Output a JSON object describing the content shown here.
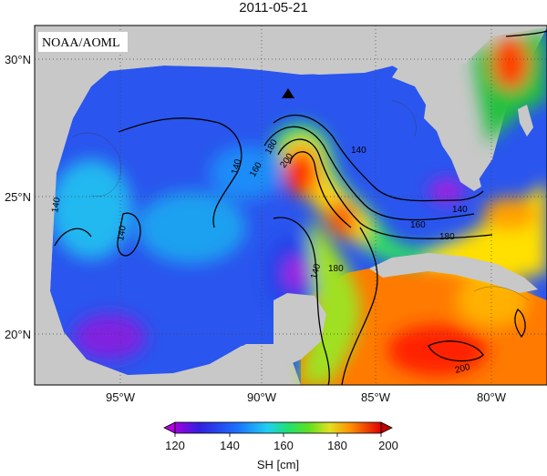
{
  "title": "2011-05-21",
  "credit": "NOAA/AOML",
  "map": {
    "lat_labels": [
      "30°N",
      "25°N",
      "20°N"
    ],
    "lon_labels": [
      "95°W",
      "90°W",
      "85°W",
      "80°W"
    ],
    "contour_labels": [
      "140",
      "140",
      "140",
      "140",
      "180",
      "160",
      "200",
      "140",
      "160",
      "180",
      "140",
      "180",
      "200"
    ],
    "marker": "triangle-marker",
    "land_color": "#c8c8c8"
  },
  "colorbar": {
    "label": "SH [cm]",
    "ticks": [
      "120",
      "140",
      "160",
      "180",
      "200"
    ],
    "colors": [
      "#b000e0",
      "#2020e0",
      "#1a70ff",
      "#20d0f0",
      "#20e8a0",
      "#20e040",
      "#d0e020",
      "#ffd000",
      "#ff8000",
      "#ff2000",
      "#d00000"
    ]
  }
}
